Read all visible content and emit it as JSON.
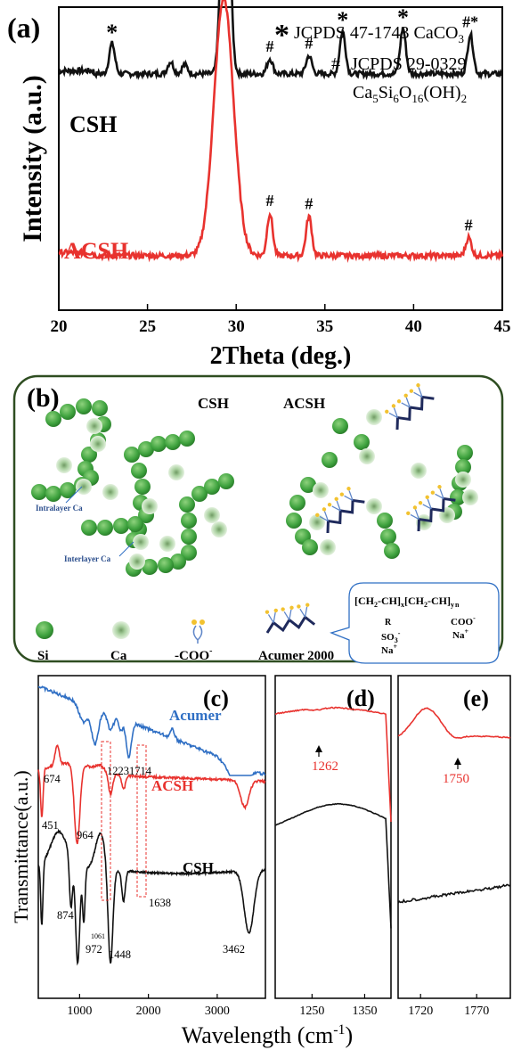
{
  "colors": {
    "csh": "#111111",
    "acsh": "#e8322e",
    "acumer": "#2f6fc4",
    "panel_border": "#2e4d21",
    "green": "#3ea23e",
    "green_light": "#b5d9ab",
    "chain": "#1f2a5c",
    "accent_yellow": "#f2c230"
  },
  "chart_data": [
    {
      "panel": "(a)",
      "type": "line",
      "xlabel": "2Theta (deg.)",
      "ylabel": "Intensity (a.u.)",
      "xlim": [
        20,
        45
      ],
      "xticks": [
        20,
        25,
        30,
        35,
        40,
        45
      ],
      "legend": [
        {
          "symbol": "*",
          "text": "JCPDS 47-1743  CaCO",
          "sub": "3"
        },
        {
          "symbol": "#",
          "text": "JCPDS 29-0329"
        },
        {
          "symbol": "",
          "formula": "Ca5Si6O16(OH)2"
        }
      ],
      "series": [
        {
          "name": "CSH",
          "baseline": 0.78,
          "peaks": [
            [
              23.0,
              0.1
            ],
            [
              26.3,
              0.04
            ],
            [
              27.1,
              0.03
            ],
            [
              29.4,
              0.95
            ],
            [
              31.9,
              0.05
            ],
            [
              34.1,
              0.06
            ],
            [
              36.0,
              0.14
            ],
            [
              39.4,
              0.15
            ],
            [
              43.2,
              0.13
            ]
          ]
        },
        {
          "name": "ACSH",
          "baseline": 0.18,
          "peaks": [
            [
              29.3,
              0.85
            ],
            [
              31.9,
              0.14
            ],
            [
              34.1,
              0.13
            ],
            [
              43.1,
              0.06
            ]
          ]
        }
      ],
      "annotations": {
        "CSH": [
          {
            "x": 23.0,
            "t": "*"
          },
          {
            "x": 29.4,
            "t": "#*"
          },
          {
            "x": 31.9,
            "t": "#"
          },
          {
            "x": 34.1,
            "t": "#"
          },
          {
            "x": 36.0,
            "t": "*"
          },
          {
            "x": 39.4,
            "t": "*"
          },
          {
            "x": 43.2,
            "t": "#*"
          }
        ],
        "ACSH": [
          {
            "x": 29.3,
            "t": "#"
          },
          {
            "x": 31.9,
            "t": "#"
          },
          {
            "x": 34.1,
            "t": "#"
          },
          {
            "x": 43.1,
            "t": "#"
          }
        ]
      }
    },
    {
      "panel": "(c)",
      "type": "line",
      "xlim": [
        400,
        3700
      ],
      "xticks": [
        1000,
        2000,
        3000
      ],
      "series": [
        {
          "name": "Acumer",
          "labels": [
            "1223",
            "1714"
          ]
        },
        {
          "name": "ACSH",
          "labels": [
            "674",
            "451",
            "964"
          ]
        },
        {
          "name": "CSH",
          "labels": [
            "874",
            "1061",
            "972",
            "1448",
            "1638",
            "3462"
          ]
        }
      ]
    },
    {
      "panel": "(d)",
      "type": "line",
      "xlim": [
        1180,
        1400
      ],
      "xticks": [
        1250,
        1350
      ],
      "annotation": "1262"
    },
    {
      "panel": "(e)",
      "type": "line",
      "xlim": [
        1700,
        1800
      ],
      "xticks": [
        1720,
        1770
      ],
      "annotation": "1750"
    }
  ],
  "panel_c_shared": {
    "ylabel": "Transmittance(a.u.)",
    "xlabel": "Wavelength (cm",
    "xlabel_sup": "-1",
    "xlabel_end": ")"
  },
  "schematic": {
    "panel": "(b)",
    "title_csh": "CSH",
    "title_acsh": "ACSH",
    "intralayer": "Intralayer Ca",
    "interlayer": "Interlayer Ca",
    "legend": {
      "si": "Si",
      "ca": "Ca",
      "coo": "-COO",
      "coo_sup": "-",
      "acumer": "Acumer 2000"
    },
    "formula": {
      "line1a": "[CH",
      "line1b": "2",
      "line1c": "-CH]",
      "line1d": "x",
      "line1e": "[CH",
      "line1f": "2",
      "line1g": "-CH]",
      "line1h": "y",
      "line1i": "n",
      "r": "R",
      "so3": "SO",
      "so3_sub": "3",
      "so3_sup": "-",
      "na1": "Na",
      "na_sup": "+",
      "coo": "COO",
      "coo_sup": "-",
      "na2": "Na"
    }
  }
}
